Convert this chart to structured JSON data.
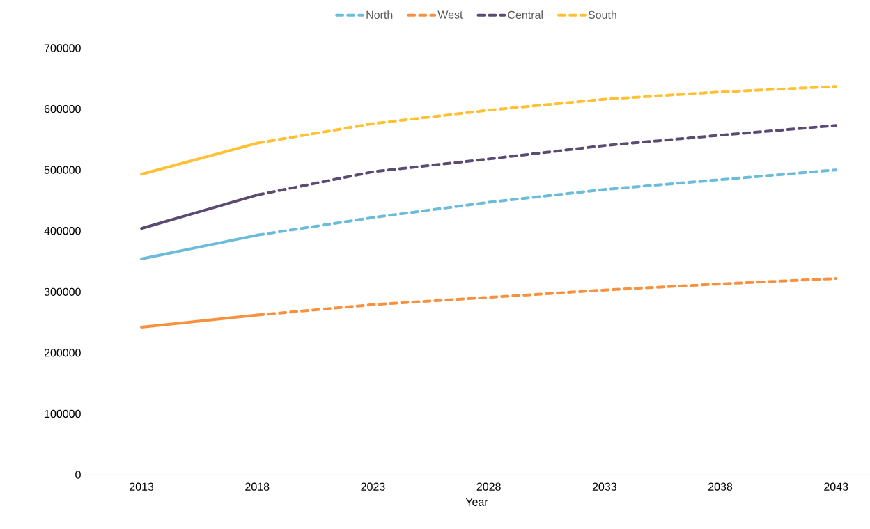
{
  "chart_data": {
    "type": "line",
    "xlabel": "Year",
    "categories": [
      "2013",
      "2018",
      "2023",
      "2028",
      "2033",
      "2038",
      "2043"
    ],
    "ylim": [
      0,
      700000
    ],
    "yticks": [
      0,
      100000,
      200000,
      300000,
      400000,
      500000,
      600000,
      700000
    ],
    "grid": false,
    "legend": "top",
    "marker": "none",
    "series": [
      {
        "name": "North",
        "color": "#6bbbdb",
        "line_style": "dashed",
        "values": [
          null,
          393000,
          422000,
          447000,
          468000,
          484000,
          500000
        ]
      },
      {
        "name": "West",
        "color": "#f79140",
        "line_style": "dashed",
        "values": [
          null,
          262000,
          279000,
          291000,
          303000,
          313000,
          322000
        ]
      },
      {
        "name": "Central",
        "color": "#5b4a72",
        "line_style": "dashed",
        "values": [
          null,
          459000,
          497000,
          518000,
          540000,
          557000,
          573000
        ]
      },
      {
        "name": "South",
        "color": "#ffc133",
        "line_style": "dashed",
        "values": [
          null,
          544000,
          576000,
          598000,
          616000,
          628000,
          637000
        ]
      },
      {
        "color": "#6bbbdb",
        "line_style": "solid",
        "values": [
          354000,
          393000,
          null,
          null,
          null,
          null,
          null
        ]
      },
      {
        "color": "#f79140",
        "line_style": "solid",
        "values": [
          242000,
          262000,
          null,
          null,
          null,
          null,
          null
        ]
      },
      {
        "color": "#5b4a72",
        "line_style": "solid",
        "values": [
          404000,
          459000,
          null,
          null,
          null,
          null,
          null
        ]
      },
      {
        "color": "#ffc133",
        "line_style": "solid",
        "values": [
          493000,
          544000,
          null,
          null,
          null,
          null,
          null
        ]
      }
    ]
  }
}
